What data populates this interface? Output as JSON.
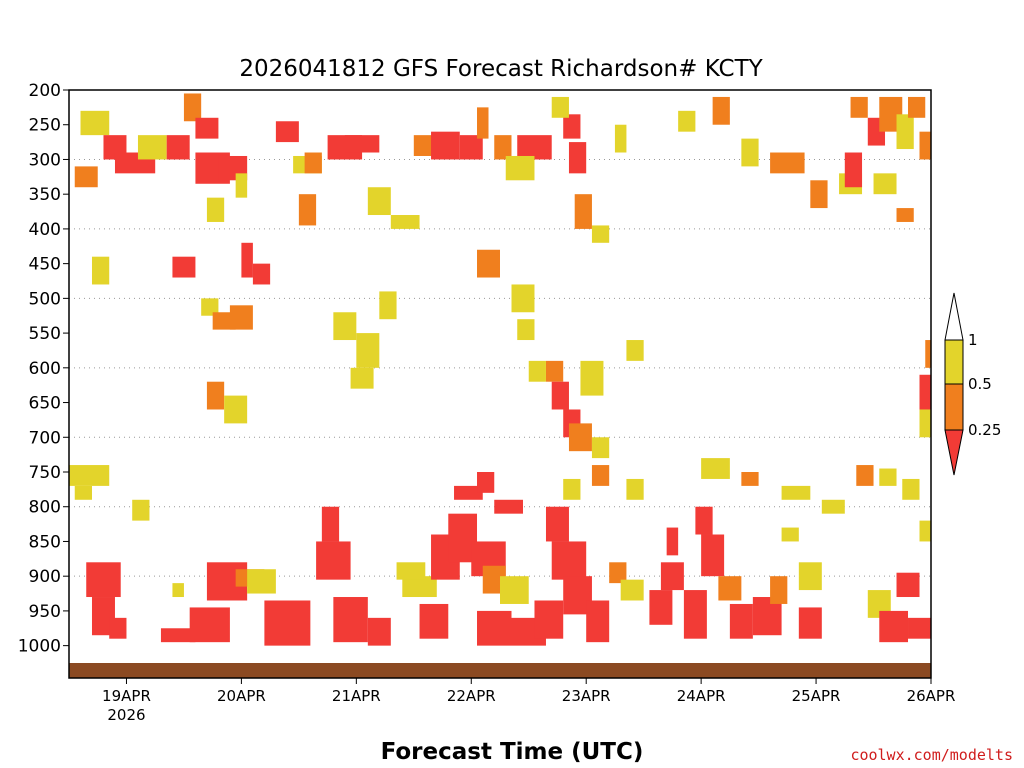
{
  "chart_data": {
    "type": "heatmap",
    "title": "2026041812 GFS Forecast Richardson# KCTY",
    "xlabel": "Forecast Time (UTC)",
    "ylabel": "",
    "credit": "coolwx.com/modelts",
    "x_ticks": [
      {
        "label": "19APR",
        "sub": "2026",
        "day": 0.5
      },
      {
        "label": "20APR",
        "sub": "",
        "day": 1.5
      },
      {
        "label": "21APR",
        "sub": "",
        "day": 2.5
      },
      {
        "label": "22APR",
        "sub": "",
        "day": 3.5
      },
      {
        "label": "23APR",
        "sub": "",
        "day": 4.5
      },
      {
        "label": "24APR",
        "sub": "",
        "day": 5.5
      },
      {
        "label": "25APR",
        "sub": "",
        "day": 6.5
      },
      {
        "label": "26APR",
        "sub": "",
        "day": 7.5
      }
    ],
    "xlim": [
      0,
      7.5
    ],
    "y_ticks": [
      "200",
      "250",
      "300",
      "350",
      "400",
      "450",
      "500",
      "550",
      "600",
      "650",
      "700",
      "750",
      "800",
      "850",
      "900",
      "950",
      "1000"
    ],
    "ylim": [
      200,
      1025
    ],
    "y_axis": "pressure (hPa), increasing downward",
    "gridlines": "dotted horizontal at 300, 400, 500, 600, 700, 800, 900",
    "legend": {
      "placement": "right",
      "labels": [
        "1",
        "0.5",
        "0.25"
      ],
      "bins": [
        {
          "range": "> 1",
          "color": "#ffffff"
        },
        {
          "range": "0.5 – 1",
          "color": "#e3d42b"
        },
        {
          "range": "0.25 – 0.5",
          "color": "#f07f1e"
        },
        {
          "range": "< 0.25",
          "color": "#f23b36"
        }
      ]
    },
    "colors": {
      "yellow": "#e3d42b",
      "orange": "#f07f1e",
      "red": "#f23b36",
      "ground": "#8b4a22"
    },
    "cells_note": "approximate patches, x in days after 2026-04-18 12Z, p in hPa, c = 1 yellow (0.5-1), 2 orange (0.25-0.5), 3 red (<0.25)",
    "cells": [
      [
        0.1,
        0.35,
        230,
        265,
        1
      ],
      [
        0.3,
        0.5,
        265,
        300,
        3
      ],
      [
        0.4,
        0.75,
        290,
        320,
        3
      ],
      [
        0.6,
        0.85,
        265,
        300,
        1
      ],
      [
        0.85,
        1.05,
        265,
        300,
        3
      ],
      [
        0.05,
        0.25,
        310,
        340,
        2
      ],
      [
        1.0,
        1.15,
        205,
        245,
        2
      ],
      [
        1.1,
        1.3,
        240,
        270,
        3
      ],
      [
        1.1,
        1.4,
        290,
        335,
        3
      ],
      [
        1.3,
        1.55,
        295,
        330,
        3
      ],
      [
        1.45,
        1.55,
        320,
        355,
        1
      ],
      [
        1.2,
        1.35,
        355,
        390,
        1
      ],
      [
        1.8,
        2.0,
        245,
        275,
        3
      ],
      [
        1.95,
        2.2,
        295,
        320,
        1
      ],
      [
        2.25,
        2.55,
        265,
        300,
        3
      ],
      [
        2.4,
        2.7,
        265,
        290,
        3
      ],
      [
        2.05,
        2.2,
        290,
        320,
        2
      ],
      [
        2.0,
        2.15,
        350,
        395,
        2
      ],
      [
        2.6,
        2.8,
        340,
        380,
        1
      ],
      [
        2.8,
        3.05,
        380,
        400,
        1
      ],
      [
        3.0,
        3.2,
        265,
        295,
        2
      ],
      [
        3.15,
        3.4,
        260,
        300,
        3
      ],
      [
        3.4,
        3.6,
        265,
        300,
        3
      ],
      [
        3.55,
        3.65,
        225,
        270,
        2
      ],
      [
        3.7,
        3.85,
        265,
        300,
        2
      ],
      [
        3.9,
        4.2,
        265,
        300,
        3
      ],
      [
        3.8,
        4.05,
        295,
        330,
        1
      ],
      [
        4.3,
        4.45,
        235,
        270,
        3
      ],
      [
        4.35,
        4.5,
        275,
        320,
        3
      ],
      [
        4.4,
        4.55,
        350,
        400,
        2
      ],
      [
        4.55,
        4.7,
        395,
        420,
        1
      ],
      [
        4.2,
        4.35,
        210,
        240,
        1
      ],
      [
        4.75,
        4.85,
        250,
        290,
        1
      ],
      [
        5.3,
        5.45,
        230,
        260,
        1
      ],
      [
        5.6,
        5.75,
        210,
        250,
        2
      ],
      [
        5.85,
        6.0,
        270,
        310,
        1
      ],
      [
        6.1,
        6.4,
        290,
        320,
        2
      ],
      [
        6.45,
        6.6,
        330,
        370,
        2
      ],
      [
        6.7,
        6.9,
        320,
        350,
        1
      ],
      [
        6.8,
        6.95,
        210,
        240,
        2
      ],
      [
        6.95,
        7.1,
        240,
        280,
        3
      ],
      [
        7.05,
        7.25,
        210,
        260,
        2
      ],
      [
        7.2,
        7.35,
        235,
        285,
        1
      ],
      [
        6.75,
        6.9,
        290,
        340,
        3
      ],
      [
        7.0,
        7.2,
        320,
        350,
        1
      ],
      [
        7.3,
        7.45,
        210,
        240,
        2
      ],
      [
        7.4,
        7.5,
        260,
        300,
        2
      ],
      [
        7.2,
        7.35,
        370,
        390,
        2
      ],
      [
        0.2,
        0.35,
        440,
        480,
        1
      ],
      [
        0.9,
        1.1,
        440,
        470,
        3
      ],
      [
        1.15,
        1.3,
        500,
        525,
        1
      ],
      [
        1.25,
        1.45,
        520,
        545,
        2
      ],
      [
        1.4,
        1.6,
        510,
        545,
        2
      ],
      [
        1.5,
        1.6,
        420,
        470,
        3
      ],
      [
        1.6,
        1.75,
        450,
        480,
        3
      ],
      [
        2.3,
        2.5,
        520,
        560,
        1
      ],
      [
        2.5,
        2.7,
        550,
        600,
        1
      ],
      [
        2.7,
        2.85,
        490,
        530,
        1
      ],
      [
        3.55,
        3.75,
        430,
        470,
        2
      ],
      [
        3.85,
        4.05,
        480,
        520,
        1
      ],
      [
        3.9,
        4.05,
        530,
        560,
        1
      ],
      [
        4.15,
        4.3,
        590,
        620,
        2
      ],
      [
        4.2,
        4.35,
        620,
        660,
        3
      ],
      [
        4.3,
        4.45,
        660,
        700,
        3
      ],
      [
        4.35,
        4.55,
        680,
        720,
        2
      ],
      [
        4.55,
        4.7,
        700,
        730,
        1
      ],
      [
        4.0,
        4.15,
        590,
        620,
        1
      ],
      [
        4.45,
        4.65,
        590,
        640,
        1
      ],
      [
        4.85,
        5.0,
        560,
        590,
        1
      ],
      [
        1.2,
        1.35,
        620,
        660,
        2
      ],
      [
        1.35,
        1.55,
        640,
        680,
        1
      ],
      [
        2.45,
        2.65,
        600,
        630,
        1
      ],
      [
        7.45,
        7.5,
        560,
        600,
        2
      ],
      [
        7.4,
        7.5,
        610,
        660,
        3
      ],
      [
        7.4,
        7.5,
        660,
        700,
        1
      ],
      [
        0.0,
        0.35,
        740,
        770,
        1
      ],
      [
        0.05,
        0.2,
        770,
        790,
        1
      ],
      [
        0.55,
        0.7,
        790,
        820,
        1
      ],
      [
        3.35,
        3.6,
        770,
        790,
        3
      ],
      [
        3.55,
        3.7,
        750,
        780,
        3
      ],
      [
        3.7,
        3.95,
        790,
        810,
        3
      ],
      [
        4.3,
        4.45,
        760,
        790,
        1
      ],
      [
        4.55,
        4.7,
        740,
        770,
        2
      ],
      [
        4.85,
        5.0,
        760,
        790,
        1
      ],
      [
        5.5,
        5.75,
        730,
        760,
        1
      ],
      [
        5.85,
        6.0,
        750,
        770,
        2
      ],
      [
        6.2,
        6.45,
        770,
        790,
        1
      ],
      [
        6.85,
        7.0,
        740,
        770,
        2
      ],
      [
        7.05,
        7.2,
        745,
        770,
        1
      ],
      [
        7.4,
        7.5,
        820,
        850,
        1
      ],
      [
        6.2,
        6.35,
        830,
        850,
        1
      ],
      [
        6.55,
        6.75,
        790,
        810,
        1
      ],
      [
        7.25,
        7.4,
        760,
        790,
        1
      ],
      [
        0.15,
        0.45,
        880,
        930,
        3
      ],
      [
        0.2,
        0.4,
        930,
        985,
        3
      ],
      [
        0.35,
        0.5,
        960,
        990,
        3
      ],
      [
        0.8,
        1.1,
        975,
        995,
        3
      ],
      [
        1.05,
        1.4,
        945,
        995,
        3
      ],
      [
        1.2,
        1.55,
        880,
        935,
        3
      ],
      [
        1.45,
        1.7,
        890,
        915,
        2
      ],
      [
        1.55,
        1.8,
        890,
        925,
        1
      ],
      [
        1.7,
        2.1,
        935,
        1000,
        3
      ],
      [
        2.15,
        2.45,
        850,
        905,
        3
      ],
      [
        2.2,
        2.35,
        800,
        850,
        3
      ],
      [
        2.3,
        2.6,
        930,
        995,
        3
      ],
      [
        2.6,
        2.8,
        960,
        1000,
        3
      ],
      [
        2.9,
        3.2,
        900,
        930,
        1
      ],
      [
        3.05,
        3.3,
        940,
        990,
        3
      ],
      [
        3.15,
        3.4,
        840,
        905,
        3
      ],
      [
        3.3,
        3.55,
        810,
        880,
        3
      ],
      [
        3.5,
        3.8,
        850,
        900,
        3
      ],
      [
        3.6,
        3.8,
        885,
        925,
        2
      ],
      [
        3.75,
        4.0,
        900,
        940,
        1
      ],
      [
        3.55,
        3.85,
        950,
        1000,
        3
      ],
      [
        3.85,
        4.15,
        960,
        1000,
        3
      ],
      [
        4.05,
        4.3,
        935,
        990,
        3
      ],
      [
        4.2,
        4.5,
        850,
        905,
        3
      ],
      [
        4.3,
        4.55,
        900,
        955,
        3
      ],
      [
        4.15,
        4.35,
        800,
        850,
        3
      ],
      [
        4.5,
        4.7,
        935,
        995,
        3
      ],
      [
        4.7,
        4.85,
        880,
        910,
        2
      ],
      [
        4.8,
        5.0,
        905,
        935,
        1
      ],
      [
        5.05,
        5.25,
        920,
        970,
        3
      ],
      [
        5.15,
        5.35,
        880,
        920,
        3
      ],
      [
        5.2,
        5.3,
        830,
        870,
        3
      ],
      [
        5.35,
        5.55,
        920,
        990,
        3
      ],
      [
        5.5,
        5.7,
        840,
        900,
        3
      ],
      [
        5.45,
        5.6,
        800,
        840,
        3
      ],
      [
        5.65,
        5.85,
        900,
        935,
        2
      ],
      [
        5.75,
        5.95,
        940,
        990,
        3
      ],
      [
        5.95,
        6.2,
        930,
        985,
        3
      ],
      [
        6.1,
        6.25,
        900,
        940,
        2
      ],
      [
        6.35,
        6.55,
        945,
        990,
        3
      ],
      [
        6.35,
        6.55,
        880,
        920,
        1
      ],
      [
        6.95,
        7.15,
        920,
        960,
        1
      ],
      [
        7.05,
        7.3,
        950,
        995,
        3
      ],
      [
        7.2,
        7.4,
        895,
        930,
        3
      ],
      [
        7.3,
        7.5,
        960,
        990,
        3
      ],
      [
        0.9,
        1.0,
        910,
        930,
        1
      ],
      [
        2.85,
        3.1,
        880,
        905,
        1
      ]
    ]
  }
}
